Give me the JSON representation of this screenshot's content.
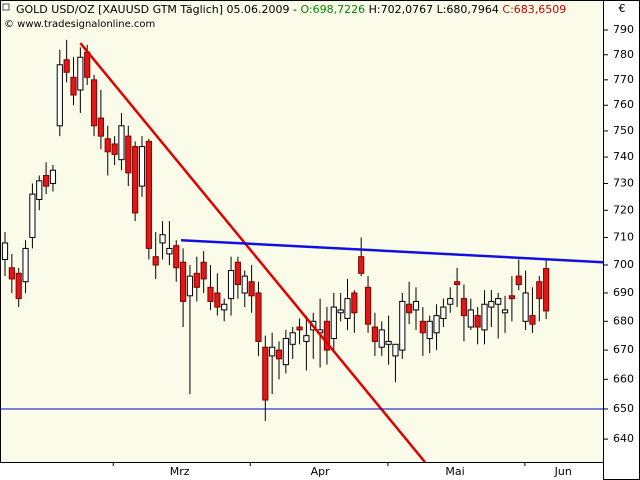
{
  "chart_data": {
    "type": "candlestick",
    "title": "GOLD USD/OZ [XAUUSD GTM  Täglich] 05.06.2009 -",
    "title_open": "O:698,7226",
    "title_high_low": "H:702,0767 L:680,7964",
    "title_close": "C:683,6509",
    "subtitle": "© www.tradesignalonline.com",
    "currency": "€",
    "log_scale": true,
    "up_color": "#ffffff",
    "down_color": "#e01818",
    "open": [
      702,
      699,
      697,
      694,
      710,
      724,
      733,
      730,
      752,
      778,
      771,
      766,
      781,
      770,
      755,
      747,
      745,
      739,
      748,
      744,
      729,
      746,
      703,
      708,
      704,
      707,
      701,
      689,
      697,
      701,
      692,
      690,
      684,
      688,
      701,
      690,
      694,
      690,
      671,
      668,
      670,
      665,
      672,
      678,
      673,
      677,
      676,
      680,
      674,
      683,
      681,
      690,
      703,
      692,
      678,
      671,
      672,
      668,
      670,
      686,
      684,
      680,
      674,
      676,
      681,
      686,
      694,
      688,
      678,
      682,
      677,
      685,
      686,
      683,
      689,
      696,
      680,
      682,
      694,
      698.7226
    ],
    "high": [
      712,
      704,
      699,
      709,
      730,
      733,
      738,
      737,
      782,
      786,
      779,
      783,
      784,
      772,
      766,
      752,
      748,
      757,
      752,
      746,
      748,
      747,
      712,
      716,
      716,
      709,
      706,
      700,
      703,
      705,
      700,
      697,
      688,
      703,
      703,
      698,
      700,
      694,
      675,
      676,
      673,
      677,
      678,
      681,
      682,
      683,
      688,
      685,
      690,
      690,
      695,
      691,
      710,
      696,
      683,
      680,
      682,
      672,
      690,
      694,
      692,
      685,
      682,
      686,
      688,
      692,
      699,
      693,
      688,
      685,
      691,
      691,
      690,
      689,
      696,
      702,
      698,
      692,
      696,
      702.0767
    ],
    "low": [
      696,
      690,
      685,
      690,
      706,
      720,
      726,
      727,
      748,
      769,
      760,
      757,
      768,
      748,
      743,
      733,
      737,
      735,
      729,
      716,
      725,
      702,
      695,
      702,
      700,
      694,
      678,
      655,
      687,
      690,
      684,
      682,
      680,
      682,
      688,
      685,
      683,
      668,
      646,
      655,
      660,
      662,
      667,
      672,
      663,
      667,
      664,
      665,
      670,
      680,
      677,
      676,
      696,
      676,
      668,
      668,
      665,
      659,
      667,
      679,
      677,
      668,
      669,
      670,
      678,
      683,
      685,
      673,
      677,
      672,
      672,
      678,
      674,
      676,
      680,
      691,
      677,
      676,
      680,
      680.7964
    ],
    "close": [
      708,
      695,
      688,
      706,
      726,
      731,
      729,
      735,
      776,
      773,
      764,
      779,
      771,
      752,
      748,
      742,
      741,
      752,
      734,
      719,
      744,
      706,
      700,
      711,
      706,
      699,
      687,
      696,
      692,
      695,
      687,
      685,
      686,
      698,
      693,
      696,
      689,
      673,
      653,
      671,
      667,
      674,
      676,
      677,
      675,
      680,
      677,
      670,
      685,
      684,
      688,
      683,
      697,
      679,
      673,
      677,
      673,
      672,
      687,
      683,
      687,
      676,
      680,
      682,
      685,
      688,
      693,
      682,
      684,
      678,
      686,
      687,
      688,
      684,
      688,
      693,
      690,
      679,
      688,
      683.6509
    ],
    "lines": [
      {
        "color": "#e00000",
        "x": [
          11,
          61.3
        ],
        "values": [
          784.7,
          632.5
        ]
      },
      {
        "color": "#1010e0",
        "x": [
          25.7,
          87.3
        ],
        "values": [
          709,
          701
        ]
      },
      {
        "color": "#0000c0",
        "x": [
          -0.73,
          87.3
        ],
        "values": [
          650,
          650
        ]
      }
    ],
    "xlim": [
      -0.73,
      87.3
    ],
    "xticks": [
      {
        "value": 25.5,
        "label": "Mrz"
      },
      {
        "value": 46,
        "label": "Apr"
      },
      {
        "value": 65.7,
        "label": "Mai"
      },
      {
        "value": 81.5,
        "label": "Jun"
      }
    ],
    "month_starts": [
      15.8,
      35.8,
      55.9,
      75.9
    ],
    "ylim": [
      632.5,
      802.3
    ],
    "yticks": [
      640,
      650,
      660,
      670,
      680,
      690,
      700,
      710,
      720,
      730,
      740,
      750,
      760,
      770,
      780,
      790
    ]
  }
}
